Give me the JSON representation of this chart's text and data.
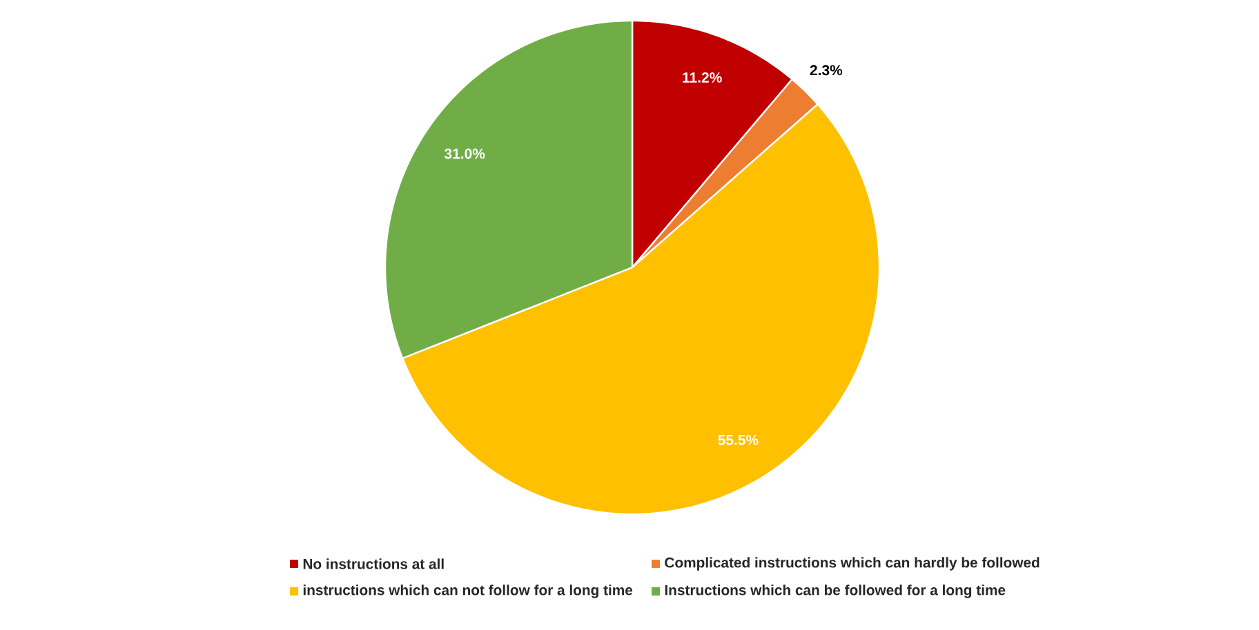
{
  "chart_data": {
    "type": "pie",
    "categories": [
      "No instructions at all",
      "Complicated instructions which can hardly be followed",
      "instructions which can not follow for a long time",
      "Instructions which can be followed for a long time"
    ],
    "values": [
      11.2,
      2.3,
      55.5,
      31.0
    ],
    "colors": [
      "#c00000",
      "#ed7d31",
      "#ffc000",
      "#70ad47"
    ],
    "value_labels": [
      "11.2%",
      "2.3%",
      "55.5%",
      "31.0%"
    ],
    "legend": "bottom"
  }
}
